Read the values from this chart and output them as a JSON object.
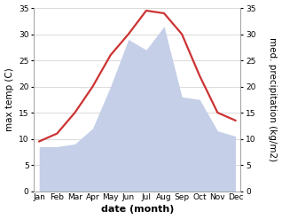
{
  "months": [
    "Jan",
    "Feb",
    "Mar",
    "Apr",
    "May",
    "Jun",
    "Jul",
    "Aug",
    "Sep",
    "Oct",
    "Nov",
    "Dec"
  ],
  "month_indices": [
    0,
    1,
    2,
    3,
    4,
    5,
    6,
    7,
    8,
    9,
    10,
    11
  ],
  "temp_max": [
    9.5,
    11.0,
    15.0,
    20.0,
    26.0,
    30.0,
    34.5,
    34.0,
    30.0,
    22.0,
    15.0,
    13.5
  ],
  "precipitation": [
    8.5,
    8.5,
    9.0,
    12.0,
    20.0,
    29.0,
    27.0,
    31.5,
    18.0,
    17.5,
    11.5,
    10.5
  ],
  "temp_color": "#cc3333",
  "precip_fill_color": "#c5cfe8",
  "background_color": "#ffffff",
  "ylabel_left": "max temp (C)",
  "ylabel_right": "med. precipitation (kg/m2)",
  "xlabel": "date (month)",
  "ylim_left": [
    0,
    35
  ],
  "ylim_right": [
    0,
    35
  ],
  "yticks_left": [
    0,
    5,
    10,
    15,
    20,
    25,
    30,
    35
  ],
  "yticks_right": [
    0,
    5,
    10,
    15,
    20,
    25,
    30,
    35
  ],
  "label_fontsize": 7.5,
  "tick_fontsize": 6.5,
  "xlabel_fontsize": 8,
  "line_width": 1.6,
  "grid_color": "#cccccc",
  "grid_lw": 0.5,
  "spine_color": "#999999",
  "spine_lw": 0.5
}
